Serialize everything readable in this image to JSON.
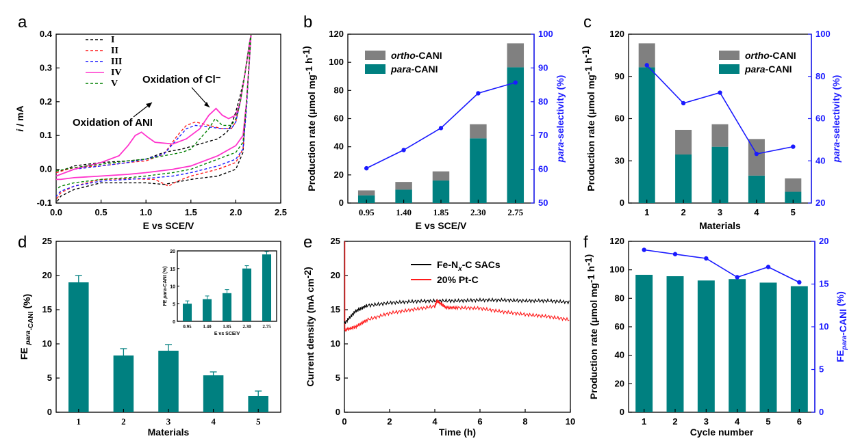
{
  "colors": {
    "teal": "#008080",
    "grey": "#808080",
    "blue": "#1a1aff",
    "black": "#000000",
    "red": "#ff1a1a",
    "magenta": "#ff33cc",
    "green": "#008000"
  },
  "panel_labels": [
    "a",
    "b",
    "c",
    "d",
    "e",
    "f"
  ],
  "chart_data": [
    {
      "panel": "a",
      "type": "line",
      "xlabel": "E vs SCE/V",
      "ylabel": "i / mA",
      "xlim": [
        0.0,
        2.5
      ],
      "ylim": [
        -0.1,
        0.4
      ],
      "xticks": [
        "0.0",
        "0.5",
        "1.0",
        "1.5",
        "2.0",
        "2.5"
      ],
      "yticks": [
        "-0.1",
        "0.0",
        "0.1",
        "0.2",
        "0.3",
        "0.4"
      ],
      "annotations": [
        "Oxidation of ANI",
        "Oxidation of Cl⁻"
      ],
      "legend_position": "top-left",
      "series": [
        {
          "name": "I",
          "color": "#000000",
          "forward": [
            [
              0.0,
              -0.01
            ],
            [
              0.2,
              0.01
            ],
            [
              0.5,
              0.02
            ],
            [
              0.8,
              0.025
            ],
            [
              1.0,
              0.03
            ],
            [
              1.2,
              0.05
            ],
            [
              1.4,
              0.06
            ],
            [
              1.6,
              0.075
            ],
            [
              1.8,
              0.09
            ],
            [
              1.9,
              0.11
            ],
            [
              1.95,
              0.13
            ],
            [
              2.0,
              0.17
            ],
            [
              2.05,
              0.22
            ],
            [
              2.1,
              0.28
            ],
            [
              2.15,
              0.36
            ],
            [
              2.17,
              0.4
            ]
          ],
          "reverse": [
            [
              2.17,
              0.4
            ],
            [
              2.12,
              0.2
            ],
            [
              2.08,
              0.05
            ],
            [
              2.0,
              0.0
            ],
            [
              1.8,
              -0.02
            ],
            [
              1.5,
              -0.03
            ],
            [
              1.2,
              -0.045
            ],
            [
              1.0,
              -0.04
            ],
            [
              0.5,
              -0.04
            ],
            [
              0.2,
              -0.06
            ],
            [
              0.05,
              -0.08
            ],
            [
              0.0,
              -0.1
            ]
          ]
        },
        {
          "name": "II",
          "color": "#ff1a1a",
          "forward": [
            [
              0.0,
              -0.01
            ],
            [
              0.2,
              0.005
            ],
            [
              0.5,
              0.01
            ],
            [
              0.8,
              0.02
            ],
            [
              1.0,
              0.025
            ],
            [
              1.2,
              0.045
            ],
            [
              1.35,
              0.1
            ],
            [
              1.45,
              0.13
            ],
            [
              1.55,
              0.14
            ],
            [
              1.7,
              0.13
            ],
            [
              1.85,
              0.12
            ],
            [
              1.95,
              0.12
            ],
            [
              2.0,
              0.14
            ],
            [
              2.05,
              0.2
            ],
            [
              2.1,
              0.28
            ],
            [
              2.15,
              0.37
            ],
            [
              2.17,
              0.4
            ]
          ],
          "reverse": [
            [
              2.17,
              0.4
            ],
            [
              2.12,
              0.2
            ],
            [
              2.08,
              0.06
            ],
            [
              2.0,
              0.02
            ],
            [
              1.8,
              0.0
            ],
            [
              1.5,
              -0.02
            ],
            [
              1.35,
              -0.035
            ],
            [
              1.25,
              -0.05
            ],
            [
              1.1,
              -0.03
            ],
            [
              0.8,
              -0.028
            ],
            [
              0.5,
              -0.03
            ],
            [
              0.2,
              -0.05
            ],
            [
              0.05,
              -0.07
            ],
            [
              0.0,
              -0.09
            ]
          ]
        },
        {
          "name": "III",
          "color": "#1a1aff",
          "forward": [
            [
              0.0,
              -0.02
            ],
            [
              0.2,
              0.0
            ],
            [
              0.5,
              0.01
            ],
            [
              0.8,
              0.02
            ],
            [
              1.0,
              0.03
            ],
            [
              1.2,
              0.045
            ],
            [
              1.35,
              0.09
            ],
            [
              1.45,
              0.12
            ],
            [
              1.55,
              0.13
            ],
            [
              1.7,
              0.125
            ],
            [
              1.85,
              0.12
            ],
            [
              1.95,
              0.12
            ],
            [
              2.0,
              0.14
            ],
            [
              2.05,
              0.2
            ],
            [
              2.1,
              0.28
            ],
            [
              2.15,
              0.37
            ],
            [
              2.17,
              0.4
            ]
          ],
          "reverse": [
            [
              2.17,
              0.4
            ],
            [
              2.12,
              0.18
            ],
            [
              2.08,
              0.06
            ],
            [
              2.0,
              0.03
            ],
            [
              1.8,
              0.01
            ],
            [
              1.5,
              -0.01
            ],
            [
              1.3,
              -0.02
            ],
            [
              1.1,
              -0.025
            ],
            [
              0.8,
              -0.03
            ],
            [
              0.5,
              -0.035
            ],
            [
              0.2,
              -0.05
            ],
            [
              0.05,
              -0.065
            ],
            [
              0.0,
              -0.08
            ]
          ]
        },
        {
          "name": "IV",
          "color": "#ff33cc",
          "forward": [
            [
              0.0,
              -0.02
            ],
            [
              0.2,
              0.0
            ],
            [
              0.5,
              0.02
            ],
            [
              0.7,
              0.04
            ],
            [
              0.8,
              0.07
            ],
            [
              0.88,
              0.1
            ],
            [
              0.95,
              0.11
            ],
            [
              1.02,
              0.095
            ],
            [
              1.1,
              0.08
            ],
            [
              1.3,
              0.075
            ],
            [
              1.45,
              0.09
            ],
            [
              1.6,
              0.12
            ],
            [
              1.7,
              0.16
            ],
            [
              1.78,
              0.18
            ],
            [
              1.85,
              0.16
            ],
            [
              1.92,
              0.15
            ],
            [
              2.0,
              0.16
            ],
            [
              2.05,
              0.2
            ],
            [
              2.1,
              0.28
            ],
            [
              2.15,
              0.37
            ],
            [
              2.17,
              0.4
            ]
          ],
          "reverse": [
            [
              2.17,
              0.4
            ],
            [
              2.12,
              0.2
            ],
            [
              2.08,
              0.1
            ],
            [
              2.0,
              0.07
            ],
            [
              1.8,
              0.04
            ],
            [
              1.5,
              0.01
            ],
            [
              1.3,
              0.0
            ],
            [
              1.0,
              -0.01
            ],
            [
              0.8,
              -0.015
            ],
            [
              0.5,
              -0.02
            ],
            [
              0.2,
              -0.025
            ],
            [
              0.05,
              -0.03
            ],
            [
              0.0,
              -0.03
            ]
          ]
        },
        {
          "name": "V",
          "color": "#008000",
          "forward": [
            [
              0.0,
              -0.005
            ],
            [
              0.2,
              0.005
            ],
            [
              0.5,
              0.015
            ],
            [
              0.8,
              0.025
            ],
            [
              1.0,
              0.03
            ],
            [
              1.2,
              0.04
            ],
            [
              1.4,
              0.05
            ],
            [
              1.5,
              0.06
            ],
            [
              1.6,
              0.09
            ],
            [
              1.7,
              0.12
            ],
            [
              1.77,
              0.15
            ],
            [
              1.85,
              0.13
            ],
            [
              1.95,
              0.13
            ],
            [
              2.0,
              0.15
            ],
            [
              2.05,
              0.2
            ],
            [
              2.1,
              0.28
            ],
            [
              2.15,
              0.37
            ],
            [
              2.17,
              0.4
            ]
          ],
          "reverse": [
            [
              2.17,
              0.4
            ],
            [
              2.12,
              0.2
            ],
            [
              2.08,
              0.08
            ],
            [
              2.0,
              0.05
            ],
            [
              1.8,
              0.03
            ],
            [
              1.5,
              0.0
            ],
            [
              1.3,
              -0.01
            ],
            [
              1.0,
              -0.02
            ],
            [
              0.8,
              -0.025
            ],
            [
              0.5,
              -0.03
            ],
            [
              0.2,
              -0.04
            ],
            [
              0.05,
              -0.05
            ],
            [
              0.0,
              -0.06
            ]
          ]
        }
      ]
    },
    {
      "panel": "b",
      "type": "bar",
      "xlabel": "E vs SCE/V",
      "ylabel": "Production rate (μmol mg⁻¹ h⁻¹)",
      "y2label": "para-selectivity (%)",
      "categories": [
        "0.95",
        "1.40",
        "1.85",
        "2.30",
        "2.75"
      ],
      "ylim": [
        0,
        120
      ],
      "y2lim": [
        50,
        100
      ],
      "yticks": [
        "0",
        "20",
        "40",
        "60",
        "80",
        "100",
        "120"
      ],
      "y2ticks": [
        "50",
        "60",
        "70",
        "80",
        "90",
        "100"
      ],
      "legend": [
        "ortho-CANI",
        "para-CANI"
      ],
      "legend_position": "top-left",
      "series": [
        {
          "name": "para-CANI",
          "values": [
            5.5,
            9.5,
            16,
            46,
            96.5
          ]
        },
        {
          "name": "ortho-CANI",
          "values": [
            3.5,
            5.5,
            6.5,
            10,
            17
          ]
        },
        {
          "name": "para-selectivity",
          "values": [
            60.3,
            65.7,
            72.2,
            82.5,
            85.7
          ]
        }
      ]
    },
    {
      "panel": "c",
      "type": "bar",
      "xlabel": "Materials",
      "ylabel": "Production rate (μmol mg⁻¹ h⁻¹)",
      "y2label": "para-selectivity (%)",
      "categories": [
        "1",
        "2",
        "3",
        "4",
        "5"
      ],
      "ylim": [
        0,
        120
      ],
      "y2lim": [
        20,
        100
      ],
      "yticks": [
        "0",
        "30",
        "60",
        "90",
        "120"
      ],
      "y2ticks": [
        "20",
        "40",
        "60",
        "80",
        "100"
      ],
      "legend": [
        "ortho-CANI",
        "para-CANI"
      ],
      "legend_position": "top-right",
      "series": [
        {
          "name": "para-CANI",
          "values": [
            96.5,
            34.5,
            40,
            19.5,
            8
          ]
        },
        {
          "name": "ortho-CANI",
          "values": [
            17,
            17.5,
            16,
            26,
            9.5
          ]
        },
        {
          "name": "para-selectivity",
          "values": [
            85.3,
            67.3,
            72.3,
            43.3,
            46.7
          ]
        }
      ]
    },
    {
      "panel": "d",
      "type": "bar",
      "xlabel": "Materials",
      "ylabel": "FE para-CANI (%)",
      "categories": [
        "1",
        "2",
        "3",
        "4",
        "5"
      ],
      "ylim": [
        0,
        25
      ],
      "yticks": [
        "0",
        "5",
        "10",
        "15",
        "20",
        "25"
      ],
      "values": [
        19,
        8.3,
        9,
        5.4,
        2.4
      ],
      "errors": [
        1.0,
        1.0,
        0.9,
        0.5,
        0.7
      ],
      "inset": {
        "xlabel": "E vs SCE/V",
        "ylabel": "FE para-CANI (%)",
        "categories": [
          "0.95",
          "1.40",
          "1.85",
          "2.30",
          "2.75"
        ],
        "ylim": [
          0,
          20
        ],
        "yticks": [
          "0",
          "5",
          "10",
          "15",
          "20"
        ],
        "values": [
          5,
          6.3,
          8,
          15,
          19
        ],
        "errors": [
          0.8,
          0.9,
          1.0,
          0.8,
          0.8
        ]
      }
    },
    {
      "panel": "e",
      "type": "line",
      "xlabel": "Time (h)",
      "ylabel": "Current density (mA cm⁻²)",
      "xlim": [
        0,
        10
      ],
      "ylim": [
        0,
        25
      ],
      "xticks": [
        "0",
        "2",
        "4",
        "6",
        "8",
        "10"
      ],
      "yticks": [
        "0",
        "5",
        "10",
        "15",
        "20",
        "25"
      ],
      "legend": [
        "Fe-Nₓ-C SACs",
        "20% Pt-C"
      ],
      "legend_position": "top-center",
      "series": [
        {
          "name": "Fe-Nₓ-C SACs",
          "color": "#000000",
          "points": [
            [
              0,
              13
            ],
            [
              0.5,
              14.8
            ],
            [
              1,
              15.6
            ],
            [
              2,
              16
            ],
            [
              3,
              16.2
            ],
            [
              4,
              16.3
            ],
            [
              5,
              16.3
            ],
            [
              6,
              16.4
            ],
            [
              7,
              16.4
            ],
            [
              8,
              16.3
            ],
            [
              9,
              16.3
            ],
            [
              10,
              16.1
            ]
          ]
        },
        {
          "name": "20% Pt-C",
          "color": "#ff1a1a",
          "points": [
            [
              0,
              12
            ],
            [
              0.5,
              12.5
            ],
            [
              1,
              13.5
            ],
            [
              2,
              14.5
            ],
            [
              3,
              15
            ],
            [
              4,
              15.5
            ],
            [
              4.1,
              16.3
            ],
            [
              4.5,
              15.3
            ],
            [
              5,
              15.3
            ],
            [
              6,
              15.2
            ],
            [
              7,
              14.7
            ],
            [
              8,
              14.3
            ],
            [
              9,
              14
            ],
            [
              10,
              13.5
            ]
          ]
        }
      ]
    },
    {
      "panel": "f",
      "type": "bar",
      "xlabel": "Cycle number",
      "ylabel": "Production rate (μmol mg⁻¹ h⁻¹)",
      "y2label": "FE para-CANI (%)",
      "categories": [
        "1",
        "2",
        "3",
        "4",
        "5",
        "6"
      ],
      "ylim": [
        0,
        120
      ],
      "y2lim": [
        0,
        20
      ],
      "yticks": [
        "0",
        "20",
        "40",
        "60",
        "80",
        "100",
        "120"
      ],
      "y2ticks": [
        "0",
        "5",
        "10",
        "15",
        "20"
      ],
      "series": [
        {
          "name": "production",
          "values": [
            96.5,
            95.5,
            92.5,
            93.5,
            91,
            88.5
          ]
        },
        {
          "name": "FE",
          "values": [
            19,
            18.5,
            18,
            15.8,
            17,
            15.2
          ]
        }
      ]
    }
  ]
}
